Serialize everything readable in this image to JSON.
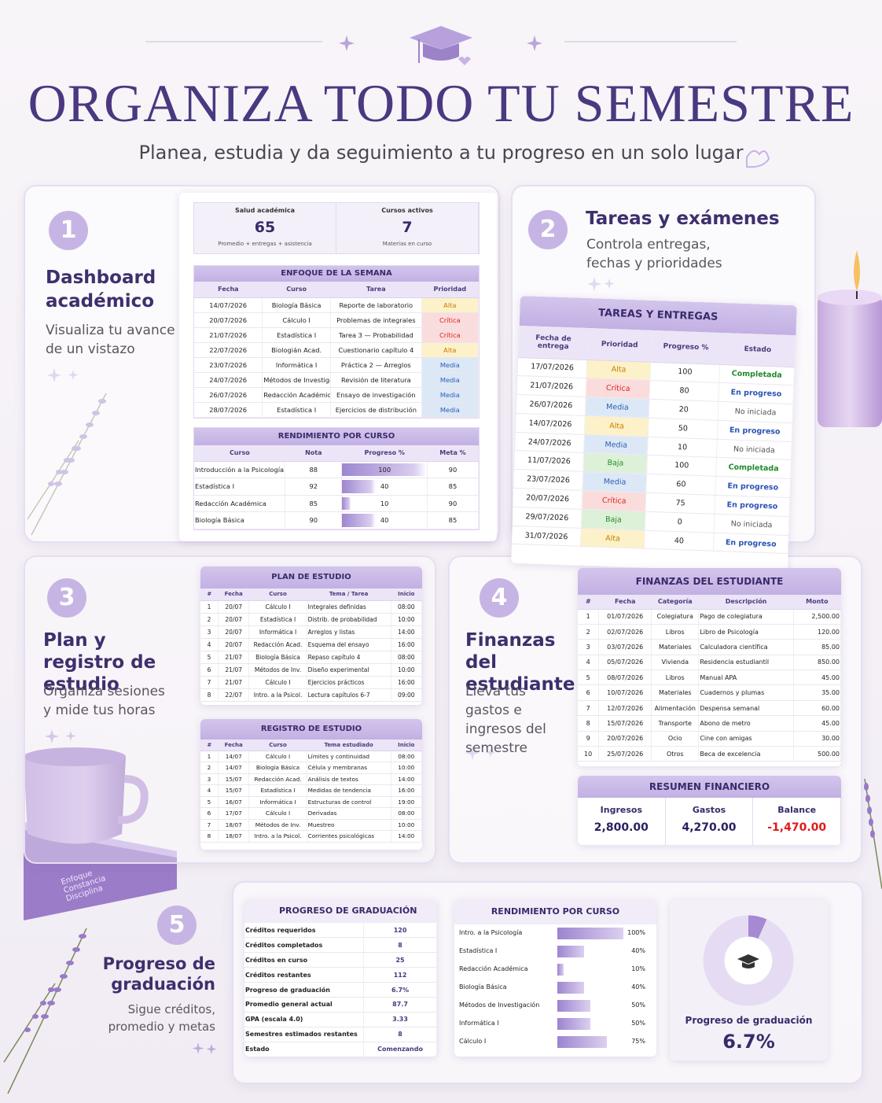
{
  "header": {
    "title": "ORGANIZA TODO TU SEMESTRE",
    "subtitle": "Planea, estudia y da seguimiento a tu progreso en un solo lugar"
  },
  "sections": [
    {
      "number": "1",
      "title": "Dashboard académico",
      "description": "Visualiza tu avance de un vistazo"
    },
    {
      "number": "2",
      "title": "Tareas y exámenes",
      "description": "Controla entregas, fechas y prioridades"
    },
    {
      "number": "3",
      "title": "Plan y registro de estudio",
      "description": "Organiza sesiones y mide tus horas"
    },
    {
      "number": "4",
      "title": "Finanzas del estudiante",
      "description": "Lleva tus gastos e ingresos del semestre"
    },
    {
      "number": "5",
      "title": "Progreso de graduación",
      "description": "Sigue créditos, promedio y metas"
    }
  ],
  "dashboard": {
    "kpis": [
      {
        "label": "Salud académica",
        "value": 65,
        "note": "Promedio + entregas + asistencia"
      },
      {
        "label": "Cursos activos",
        "value": 7,
        "note": "Materias en curso"
      }
    ],
    "focus": {
      "title": "ENFOQUE DE LA SEMANA",
      "columns": [
        "Fecha",
        "Curso",
        "Tarea",
        "Prioridad"
      ],
      "rows": [
        [
          "14/07/2026",
          "Biología Básica",
          "Reporte de laboratorio",
          "Alta"
        ],
        [
          "20/07/2026",
          "Cálculo I",
          "Problemas de integrales",
          "Crítica"
        ],
        [
          "21/07/2026",
          "Estadística I",
          "Tarea 3 — Probabilidad",
          "Crítica"
        ],
        [
          "22/07/2026",
          "Biologián Acad.",
          "Cuestionario capítulo 4",
          "Alta"
        ],
        [
          "23/07/2026",
          "Informática I",
          "Práctica 2 — Arreglos",
          "Media"
        ],
        [
          "24/07/2026",
          "Métodos de Investigación",
          "Revisión de literatura",
          "Media"
        ],
        [
          "26/07/2026",
          "Redacción Académica",
          "Ensayo de investigación",
          "Media"
        ],
        [
          "28/07/2026",
          "Estadística I",
          "Ejercicios de distribución",
          "Media"
        ]
      ]
    },
    "performance": {
      "title": "RENDIMIENTO POR CURSO",
      "columns": [
        "Curso",
        "Nota",
        "Progreso %",
        "Meta %"
      ],
      "rows": [
        [
          "Introducción a la Psicología",
          88,
          100,
          90
        ],
        [
          "Estadística I",
          92,
          40,
          85
        ],
        [
          "Redacción Académica",
          85,
          10,
          90
        ],
        [
          "Biología Básica",
          90,
          40,
          85
        ]
      ]
    }
  },
  "tasks": {
    "title": "TAREAS Y ENTREGAS",
    "columns": [
      "Fecha de entrega",
      "Prioridad",
      "Progreso %",
      "Estado"
    ],
    "rows": [
      [
        "17/07/2026",
        "Alta",
        100,
        "Completada"
      ],
      [
        "21/07/2026",
        "Crítica",
        80,
        "En progreso"
      ],
      [
        "26/07/2026",
        "Media",
        20,
        "No iniciada"
      ],
      [
        "14/07/2026",
        "Alta",
        50,
        "En progreso"
      ],
      [
        "24/07/2026",
        "Media",
        10,
        "No iniciada"
      ],
      [
        "11/07/2026",
        "Baja",
        100,
        "Completada"
      ],
      [
        "23/07/2026",
        "Media",
        60,
        "En progreso"
      ],
      [
        "20/07/2026",
        "Crítica",
        75,
        "En progreso"
      ],
      [
        "29/07/2026",
        "Baja",
        0,
        "No iniciada"
      ],
      [
        "31/07/2026",
        "Alta",
        40,
        "En progreso"
      ]
    ]
  },
  "study_plan": {
    "title": "PLAN DE ESTUDIO",
    "columns": [
      "#",
      "Fecha",
      "Curso",
      "Tema / Tarea",
      "Inicio"
    ],
    "rows": [
      [
        1,
        "20/07",
        "Cálculo I",
        "Integrales definidas",
        "08:00"
      ],
      [
        2,
        "20/07",
        "Estadística I",
        "Distrib. de probabilidad",
        "10:00"
      ],
      [
        3,
        "20/07",
        "Informática I",
        "Arreglos y listas",
        "14:00"
      ],
      [
        4,
        "20/07",
        "Redacción Acad.",
        "Esquema del ensayo",
        "16:00"
      ],
      [
        5,
        "21/07",
        "Biología Básica",
        "Repaso capítulo 4",
        "08:00"
      ],
      [
        6,
        "21/07",
        "Métodos de Inv.",
        "Diseño experimental",
        "10:00"
      ],
      [
        7,
        "21/07",
        "Cálculo I",
        "Ejercicios prácticos",
        "16:00"
      ],
      [
        8,
        "22/07",
        "Intro. a la Psicol.",
        "Lectura capítulos 6-7",
        "09:00"
      ]
    ]
  },
  "study_log": {
    "title": "REGISTRO DE ESTUDIO",
    "columns": [
      "#",
      "Fecha",
      "Curso",
      "Tema estudiado",
      "Inicio"
    ],
    "rows": [
      [
        1,
        "14/07",
        "Cálculo I",
        "Límites y continuidad",
        "08:00"
      ],
      [
        2,
        "14/07",
        "Biología Básica",
        "Célula y membranas",
        "10:00"
      ],
      [
        3,
        "15/07",
        "Redacción Acad.",
        "Análisis de textos",
        "14:00"
      ],
      [
        4,
        "15/07",
        "Estadística I",
        "Medidas de tendencia",
        "16:00"
      ],
      [
        5,
        "16/07",
        "Informática I",
        "Estructuras de control",
        "19:00"
      ],
      [
        6,
        "17/07",
        "Cálculo I",
        "Derivadas",
        "08:00"
      ],
      [
        7,
        "18/07",
        "Métodos de Inv.",
        "Muestreo",
        "10:00"
      ],
      [
        8,
        "18/07",
        "Intro. a la Psicol.",
        "Corrientes psicológicas",
        "14:00"
      ]
    ]
  },
  "book_words": [
    "Enfoque",
    "Constancia",
    "Disciplina"
  ],
  "finances": {
    "title": "FINANZAS DEL ESTUDIANTE",
    "columns": [
      "#",
      "Fecha",
      "Categoría",
      "Descripción",
      "Monto"
    ],
    "rows": [
      [
        1,
        "01/07/2026",
        "Colegiatura",
        "Pago de colegiatura",
        "2,500.00"
      ],
      [
        2,
        "02/07/2026",
        "Libros",
        "Libro de Psicología",
        "120.00"
      ],
      [
        3,
        "03/07/2026",
        "Materiales",
        "Calculadora científica",
        "85.00"
      ],
      [
        4,
        "05/07/2026",
        "Vivienda",
        "Residencia estudiantil",
        "850.00"
      ],
      [
        5,
        "08/07/2026",
        "Libros",
        "Manual APA",
        "45.00"
      ],
      [
        6,
        "10/07/2026",
        "Materiales",
        "Cuadernos y plumas",
        "35.00"
      ],
      [
        7,
        "12/07/2026",
        "Alimentación",
        "Despensa semanal",
        "60.00"
      ],
      [
        8,
        "15/07/2026",
        "Transporte",
        "Abono de metro",
        "45.00"
      ],
      [
        9,
        "20/07/2026",
        "Ocio",
        "Cine con amigas",
        "30.00"
      ],
      [
        10,
        "25/07/2026",
        "Otros",
        "Beca de excelencia",
        "500.00"
      ]
    ]
  },
  "finance_summary": {
    "title": "RESUMEN FINANCIERO",
    "items": [
      {
        "label": "Ingresos",
        "value": "2,800.00"
      },
      {
        "label": "Gastos",
        "value": "4,270.00"
      },
      {
        "label": "Balance",
        "value": "-1,470.00"
      }
    ]
  },
  "graduation": {
    "title": "PROGRESO DE GRADUACIÓN",
    "rows": [
      [
        "Créditos requeridos",
        120
      ],
      [
        "Créditos completados",
        8
      ],
      [
        "Créditos en curso",
        25
      ],
      [
        "Créditos restantes",
        112
      ],
      [
        "Progreso de graduación",
        "6.7%"
      ],
      [
        "Promedio general actual",
        87.7
      ],
      [
        "GPA (escala 4.0)",
        3.33
      ],
      [
        "Semestres estimados restantes",
        8
      ],
      [
        "Estado",
        "Comenzando"
      ]
    ]
  },
  "course_progress": {
    "title": "RENDIMIENTO POR CURSO",
    "rows": [
      {
        "name": "Intro. a la Psicología",
        "value": 100,
        "label": "100%"
      },
      {
        "name": "Estadística I",
        "value": 40,
        "label": "40%"
      },
      {
        "name": "Redacción Académica",
        "value": 10,
        "label": "10%"
      },
      {
        "name": "Biología Básica",
        "value": 40,
        "label": "40%"
      },
      {
        "name": "Métodos de Investigación",
        "value": 50,
        "label": "50%"
      },
      {
        "name": "Informática I",
        "value": 50,
        "label": "50%"
      },
      {
        "name": "Cálculo I",
        "value": 75,
        "label": "75%"
      }
    ]
  },
  "donut": {
    "label": "Progreso de graduación",
    "value": "6.7%"
  }
}
